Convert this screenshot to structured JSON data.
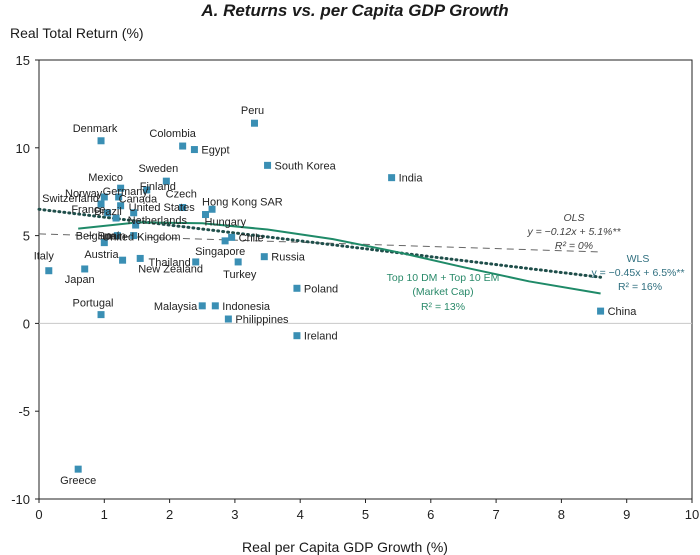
{
  "chart_data": {
    "type": "scatter",
    "title": "A. Returns vs. per Capita GDP Growth",
    "ylabel": "Real Total Return (%)",
    "xlabel": "Real per Capita GDP Growth (%)",
    "xlim": [
      0,
      10
    ],
    "ylim": [
      -10,
      15
    ],
    "xticks": [
      0,
      1,
      2,
      3,
      4,
      5,
      6,
      7,
      8,
      9,
      10
    ],
    "yticks": [
      -10,
      -5,
      0,
      5,
      10,
      15
    ],
    "grid": false,
    "points": [
      {
        "label": "Denmark",
        "x": 0.95,
        "y": 10.4
      },
      {
        "label": "Colombia",
        "x": 2.2,
        "y": 10.1
      },
      {
        "label": "Egypt",
        "x": 2.38,
        "y": 9.9
      },
      {
        "label": "Peru",
        "x": 3.3,
        "y": 11.4
      },
      {
        "label": "South Korea",
        "x": 3.5,
        "y": 9.0
      },
      {
        "label": "India",
        "x": 5.4,
        "y": 8.3
      },
      {
        "label": "Sweden",
        "x": 1.95,
        "y": 8.1
      },
      {
        "label": "Mexico",
        "x": 1.25,
        "y": 7.7
      },
      {
        "label": "Finland",
        "x": 1.65,
        "y": 7.6
      },
      {
        "label": "Norway",
        "x": 1.0,
        "y": 7.2
      },
      {
        "label": "Germany",
        "x": 1.22,
        "y": 7.2
      },
      {
        "label": "Switzerland",
        "x": 0.95,
        "y": 6.8
      },
      {
        "label": "Canada",
        "x": 1.25,
        "y": 6.7
      },
      {
        "label": "Czech",
        "x": 2.2,
        "y": 6.6
      },
      {
        "label": "Hong Kong SAR",
        "x": 2.65,
        "y": 6.5
      },
      {
        "label": "France",
        "x": 1.05,
        "y": 6.3
      },
      {
        "label": "United States",
        "x": 1.45,
        "y": 6.3
      },
      {
        "label": "Brazil",
        "x": 1.18,
        "y": 6.0
      },
      {
        "label": "Netherlands",
        "x": 1.48,
        "y": 5.6
      },
      {
        "label": "Hungary",
        "x": 2.55,
        "y": 6.2
      },
      {
        "label": "Belgium",
        "x": 1.2,
        "y": 5.0
      },
      {
        "label": "Spain",
        "x": 1.45,
        "y": 5.0
      },
      {
        "label": "Chile",
        "x": 2.95,
        "y": 4.9
      },
      {
        "label": "United Kingdom",
        "x": 1.0,
        "y": 4.6
      },
      {
        "label": "Singapore",
        "x": 2.85,
        "y": 4.7
      },
      {
        "label": "Thailand",
        "x": 2.4,
        "y": 3.5
      },
      {
        "label": "Russia",
        "x": 3.45,
        "y": 3.8
      },
      {
        "label": "Italy",
        "x": 0.15,
        "y": 3.0
      },
      {
        "label": "Austria",
        "x": 1.28,
        "y": 3.6
      },
      {
        "label": "Japan",
        "x": 0.7,
        "y": 3.1
      },
      {
        "label": "New Zealand",
        "x": 1.55,
        "y": 3.7
      },
      {
        "label": "Turkey",
        "x": 3.05,
        "y": 3.5
      },
      {
        "label": "Poland",
        "x": 3.95,
        "y": 2.0
      },
      {
        "label": "Malaysia",
        "x": 2.5,
        "y": 1.0
      },
      {
        "label": "Indonesia",
        "x": 2.7,
        "y": 1.0
      },
      {
        "label": "Philippines",
        "x": 2.9,
        "y": 0.25
      },
      {
        "label": "Portugal",
        "x": 0.95,
        "y": 0.5
      },
      {
        "label": "China",
        "x": 8.6,
        "y": 0.7
      },
      {
        "label": "Ireland",
        "x": 3.95,
        "y": -0.7
      },
      {
        "label": "Greece",
        "x": 0.6,
        "y": -8.3
      }
    ],
    "fits": {
      "ols": {
        "name": "OLS",
        "equation": "y = −0.12x + 5.1%**",
        "r2": "R² = 0%",
        "slope": -0.12,
        "intercept": 5.1,
        "x_range": [
          0,
          8.6
        ]
      },
      "wls": {
        "name": "WLS",
        "equation": "y = −0.45x + 6.5%**",
        "r2": "R² = 16%",
        "slope": -0.45,
        "intercept": 6.5,
        "x_range": [
          0,
          8.6
        ]
      },
      "top": {
        "name_line1": "Top 10 DM + Top 10 EM",
        "name_line2": "(Market Cap)",
        "r2": "R² = 13%",
        "curve": [
          [
            0.6,
            5.4
          ],
          [
            1.5,
            5.75
          ],
          [
            2.5,
            5.7
          ],
          [
            3.5,
            5.35
          ],
          [
            4.5,
            4.8
          ],
          [
            5.5,
            4.05
          ],
          [
            6.5,
            3.2
          ],
          [
            7.5,
            2.4
          ],
          [
            8.6,
            1.7
          ]
        ]
      }
    }
  }
}
